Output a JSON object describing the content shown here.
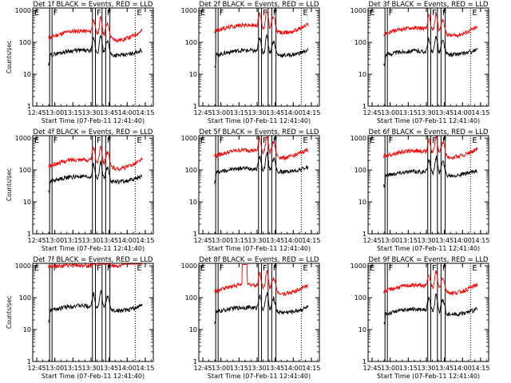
{
  "chart_data": {
    "type": "line",
    "panels": [
      {
        "title": "Det 1f BLACK = Events, RED = LLD",
        "ylabel": "Counts/sec",
        "xlabel": "Start Time (07-Feb-11 12:41:40)",
        "start_label": "E",
        "flare_labels": [
          "F",
          "F",
          "F"
        ],
        "end_label": "E",
        "red": {
          "base": 170,
          "amp": 0.35
        },
        "black": {
          "base": 45,
          "amp": 0.25
        }
      },
      {
        "title": "Det 2f BLACK = Events, RED = LLD",
        "ylabel": "",
        "xlabel": "Start Time (07-Feb-11 12:41:40)",
        "start_label": "E",
        "flare_labels": [
          "F",
          "F",
          "F"
        ],
        "end_label": "E",
        "red": {
          "base": 270,
          "amp": 0.3
        },
        "black": {
          "base": 45,
          "amp": 0.25
        }
      },
      {
        "title": "Det 3f BLACK = Events, RED = LLD",
        "ylabel": "",
        "xlabel": "Start Time (07-Feb-11 12:41:40)",
        "start_label": "E",
        "flare_labels": [
          "F",
          "F",
          "F"
        ],
        "end_label": "E",
        "red": {
          "base": 220,
          "amp": 0.3
        },
        "black": {
          "base": 45,
          "amp": 0.2
        }
      },
      {
        "title": "Det 4f BLACK = Events, RED = LLD",
        "ylabel": "Counts/sec",
        "xlabel": "Start Time (07-Feb-11 12:41:40)",
        "start_label": "E",
        "flare_labels": [
          "F",
          "F",
          "F"
        ],
        "end_label": "E",
        "red": {
          "base": 160,
          "amp": 0.35
        },
        "black": {
          "base": 50,
          "amp": 0.25
        }
      },
      {
        "title": "Det 5f BLACK = Events, RED = LLD",
        "ylabel": "",
        "xlabel": "Start Time (07-Feb-11 12:41:40)",
        "start_label": "E",
        "flare_labels": [
          "F",
          "F",
          "F"
        ],
        "end_label": "E",
        "red": {
          "base": 330,
          "amp": 0.3
        },
        "black": {
          "base": 95,
          "amp": 0.2
        }
      },
      {
        "title": "Det 6f BLACK = Events, RED = LLD",
        "ylabel": "",
        "xlabel": "Start Time (07-Feb-11 12:41:40)",
        "start_label": "E",
        "flare_labels": [
          "F",
          "F",
          "F"
        ],
        "end_label": "E",
        "red": {
          "base": 320,
          "amp": 0.25
        },
        "black": {
          "base": 75,
          "amp": 0.2
        }
      },
      {
        "title": "Det 7f BLACK = Events, RED = LLD",
        "ylabel": "Counts/sec",
        "xlabel": "Start Time (07-Feb-11 12:41:40)",
        "start_label": "E",
        "flare_labels": [
          "F",
          "F",
          "F"
        ],
        "end_label": "E",
        "red": {
          "base": 1000,
          "amp": 0.03
        },
        "black": {
          "base": 45,
          "amp": 0.25
        }
      },
      {
        "title": "Det 8f BLACK = Events, RED = LLD",
        "ylabel": "",
        "xlabel": "Start Time (07-Feb-11 12:41:40)",
        "start_label": "E",
        "flare_labels": [
          "F",
          "F",
          "F"
        ],
        "end_label": "E",
        "red": {
          "base": 190,
          "amp": 0.35
        },
        "black": {
          "base": 40,
          "amp": 0.25
        }
      },
      {
        "title": "Det 9f BLACK = Events, RED = LLD",
        "ylabel": "",
        "xlabel": "Start Time (07-Feb-11 12:41:40)",
        "start_label": "E",
        "flare_labels": [
          "F",
          "F",
          "F"
        ],
        "end_label": "E",
        "red": {
          "base": 190,
          "amp": 0.3
        },
        "black": {
          "base": 35,
          "amp": 0.25
        }
      }
    ],
    "x_ticks": [
      "12:45",
      "13:00",
      "13:15",
      "13:30",
      "13:45",
      "14:00",
      "14:15"
    ],
    "x_tick_minutes": [
      3.33,
      18.33,
      33.33,
      48.33,
      63.33,
      78.33,
      93.33
    ],
    "xlim_minutes": [
      0,
      100
    ],
    "y_ticks": [
      "1",
      "10",
      "100",
      "1000"
    ],
    "y_tick_values": [
      1,
      10,
      100,
      1000
    ],
    "ylim": [
      1,
      1200
    ],
    "yscale": "log",
    "data_start_minute": 13,
    "data_end_minute": 91,
    "solid_markers_minutes": [
      14,
      16,
      49.5,
      52,
      57.5,
      60.5,
      64
    ],
    "dotted_markers_minutes": [
      85
    ],
    "flare_peaks_minutes": [
      50.5,
      56.5,
      62
    ],
    "series": [
      {
        "color": "#ff0000"
      },
      {
        "color": "#000000"
      }
    ]
  }
}
